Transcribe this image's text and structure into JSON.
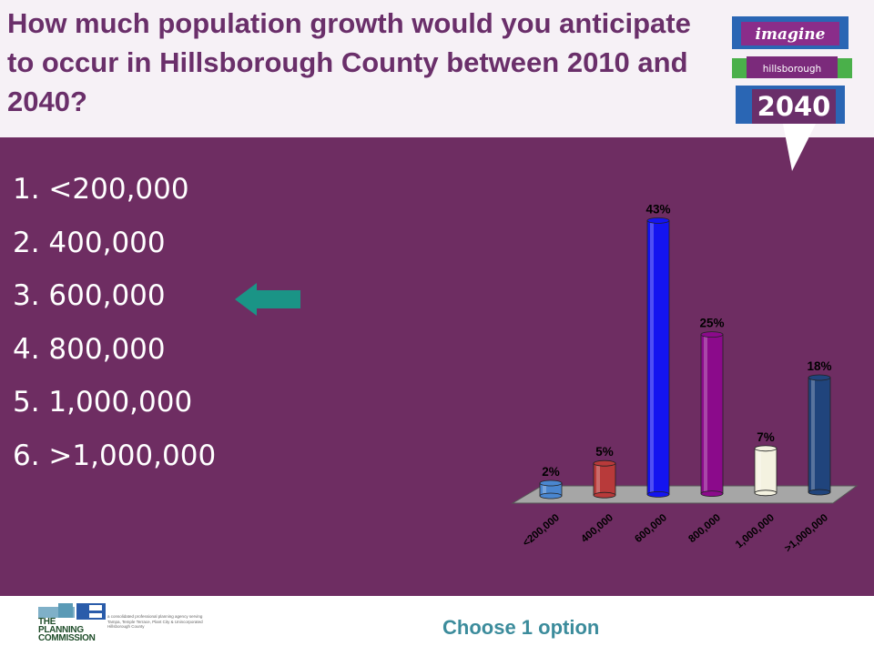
{
  "slide": {
    "title": "How much population growth would you anticipate to occur in Hillsborough County between 2010 and 2040?",
    "options": [
      "1. <200,000",
      "2. 400,000",
      "3. 600,000",
      "4. 800,000",
      "5. 1,000,000",
      "6. >1,000,000"
    ],
    "instruction": "Choose 1 option",
    "colors": {
      "header_bg": "#f6f1f6",
      "main_bg": "#6e2d62",
      "title": "#6a2f6a",
      "arrow": "#1a9486",
      "instruction": "#3c8c9c"
    }
  },
  "logo": {
    "line1": "imagine",
    "line2": "hillsborough",
    "line3": "2040"
  },
  "footer": {
    "brand": [
      "THE",
      "PLANNING",
      "COMMISSION"
    ],
    "description": "a consolidated professional planning agency serving Tampa, Temple Terrace, Plant City & Unincorporated Hillsborough County"
  },
  "chart_data": {
    "type": "bar",
    "categories": [
      "<200,000",
      "400,000",
      "600,000",
      "800,000",
      "1,000,000",
      ">1,000,000"
    ],
    "values": [
      2,
      5,
      43,
      25,
      7,
      18
    ],
    "value_labels": [
      "2%",
      "5%",
      "43%",
      "25%",
      "7%",
      "18%"
    ],
    "colors": [
      "#4a86d0",
      "#b83a3a",
      "#1414f0",
      "#8b0a8b",
      "#f4f2e0",
      "#20447c"
    ],
    "title": "",
    "xlabel": "",
    "ylabel": "",
    "ylim": [
      0,
      45
    ]
  }
}
